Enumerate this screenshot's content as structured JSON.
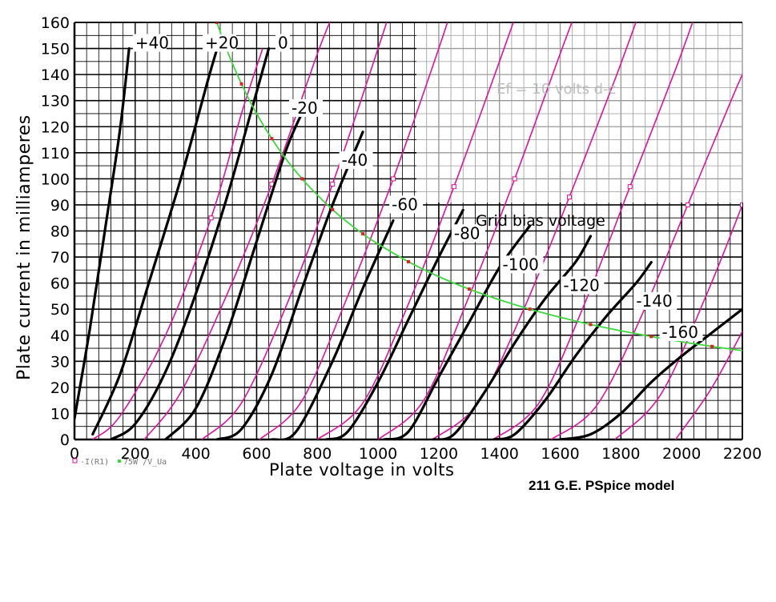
{
  "chart_data": {
    "type": "line",
    "xlabel": "Plate voltage in volts",
    "ylabel": "Plate current in milliamperes",
    "xlim": [
      0,
      2200
    ],
    "ylim": [
      0,
      160
    ],
    "x_ticks": [
      "0",
      "200",
      "400",
      "600",
      "800",
      "1000",
      "1200",
      "1400",
      "1600",
      "1800",
      "2000",
      "2200"
    ],
    "y_ticks": [
      "0",
      "10",
      "20",
      "30",
      "40",
      "50",
      "60",
      "70",
      "80",
      "90",
      "100",
      "110",
      "120",
      "130",
      "140",
      "150",
      "160"
    ],
    "grid": true,
    "annotations": {
      "filament": "Ef = 10 volts d-c",
      "grid_bias": "Grid bias voltage"
    },
    "legend": {
      "items": [
        "-I(R1)",
        "75W /V_Ua"
      ],
      "placement": "bottom-left"
    },
    "caption": "211 G.E. PSpice model",
    "colors": {
      "measured": "#000000",
      "model": "#e0119f",
      "dissipation": "#3cd83c",
      "dissipation_markers": "#e32020"
    },
    "grid_bias_curves": [
      {
        "label": "+40",
        "points": [
          [
            0,
            8
          ],
          [
            50,
            42
          ],
          [
            100,
            80
          ],
          [
            150,
            119
          ],
          [
            180,
            150
          ]
        ]
      },
      {
        "label": "+20",
        "points": [
          [
            60,
            2
          ],
          [
            150,
            25
          ],
          [
            250,
            62
          ],
          [
            350,
            100
          ],
          [
            440,
            138
          ],
          [
            470,
            150
          ]
        ]
      },
      {
        "label": "0",
        "points": [
          [
            120,
            0
          ],
          [
            200,
            6
          ],
          [
            300,
            26
          ],
          [
            400,
            56
          ],
          [
            500,
            92
          ],
          [
            580,
            125
          ],
          [
            640,
            150
          ]
        ]
      },
      {
        "label": "-20",
        "points": [
          [
            300,
            0
          ],
          [
            400,
            12
          ],
          [
            500,
            40
          ],
          [
            600,
            76
          ],
          [
            700,
            112
          ],
          [
            770,
            130
          ]
        ]
      },
      {
        "label": "-40",
        "points": [
          [
            470,
            0
          ],
          [
            550,
            4
          ],
          [
            650,
            25
          ],
          [
            750,
            58
          ],
          [
            850,
            90
          ],
          [
            950,
            118
          ]
        ]
      },
      {
        "label": "-60",
        "points": [
          [
            650,
            0
          ],
          [
            730,
            3
          ],
          [
            850,
            30
          ],
          [
            950,
            58
          ],
          [
            1050,
            84
          ]
        ]
      },
      {
        "label": "-80",
        "points": [
          [
            830,
            0
          ],
          [
            900,
            3
          ],
          [
            1000,
            22
          ],
          [
            1100,
            46
          ],
          [
            1200,
            70
          ],
          [
            1280,
            88
          ]
        ]
      },
      {
        "label": "-100",
        "points": [
          [
            1020,
            0
          ],
          [
            1100,
            3
          ],
          [
            1200,
            24
          ],
          [
            1300,
            45
          ],
          [
            1400,
            66
          ],
          [
            1500,
            82
          ]
        ]
      },
      {
        "label": "-120",
        "points": [
          [
            1180,
            0
          ],
          [
            1250,
            2
          ],
          [
            1350,
            18
          ],
          [
            1450,
            37
          ],
          [
            1550,
            54
          ],
          [
            1650,
            68
          ],
          [
            1700,
            78
          ]
        ]
      },
      {
        "label": "-140",
        "points": [
          [
            1380,
            0
          ],
          [
            1450,
            2
          ],
          [
            1550,
            15
          ],
          [
            1650,
            32
          ],
          [
            1750,
            47
          ],
          [
            1850,
            60
          ],
          [
            1900,
            68
          ]
        ]
      },
      {
        "label": "-160",
        "points": [
          [
            1600,
            0
          ],
          [
            1700,
            2
          ],
          [
            1800,
            10
          ],
          [
            1900,
            22
          ],
          [
            2000,
            32
          ],
          [
            2100,
            41
          ],
          [
            2200,
            50
          ]
        ]
      }
    ],
    "model_curves": [
      {
        "points": [
          [
            60,
            0
          ],
          [
            150,
            9
          ],
          [
            300,
            40
          ],
          [
            450,
            85
          ],
          [
            550,
            125
          ],
          [
            620,
            150
          ]
        ]
      },
      {
        "points": [
          [
            230,
            0
          ],
          [
            350,
            18
          ],
          [
            500,
            55
          ],
          [
            650,
            98
          ],
          [
            800,
            148
          ],
          [
            860,
            165
          ]
        ]
      },
      {
        "points": [
          [
            420,
            0
          ],
          [
            550,
            14
          ],
          [
            700,
            52
          ],
          [
            850,
            98
          ],
          [
            1000,
            150
          ],
          [
            1050,
            168
          ]
        ]
      },
      {
        "points": [
          [
            610,
            0
          ],
          [
            750,
            15
          ],
          [
            900,
            55
          ],
          [
            1050,
            100
          ],
          [
            1200,
            150
          ],
          [
            1250,
            168
          ]
        ]
      },
      {
        "points": [
          [
            800,
            0
          ],
          [
            950,
            14
          ],
          [
            1100,
            52
          ],
          [
            1250,
            97
          ],
          [
            1400,
            145
          ],
          [
            1470,
            168
          ]
        ]
      },
      {
        "points": [
          [
            1000,
            0
          ],
          [
            1150,
            15
          ],
          [
            1300,
            55
          ],
          [
            1450,
            100
          ],
          [
            1600,
            148
          ],
          [
            1670,
            170
          ]
        ]
      },
      {
        "points": [
          [
            1180,
            0
          ],
          [
            1330,
            14
          ],
          [
            1480,
            50
          ],
          [
            1630,
            93
          ],
          [
            1780,
            138
          ],
          [
            1880,
            170
          ]
        ]
      },
      {
        "points": [
          [
            1380,
            0
          ],
          [
            1530,
            14
          ],
          [
            1680,
            52
          ],
          [
            1830,
            97
          ],
          [
            1980,
            142
          ],
          [
            2060,
            168
          ]
        ]
      },
      {
        "points": [
          [
            1570,
            0
          ],
          [
            1720,
            13
          ],
          [
            1870,
            48
          ],
          [
            2020,
            90
          ],
          [
            2170,
            132
          ],
          [
            2220,
            145
          ]
        ]
      },
      {
        "points": [
          [
            1780,
            0
          ],
          [
            1930,
            17
          ],
          [
            2080,
            55
          ],
          [
            2200,
            90
          ],
          [
            2230,
            100
          ]
        ]
      },
      {
        "points": [
          [
            1980,
            0
          ],
          [
            2100,
            20
          ],
          [
            2220,
            46
          ]
        ]
      }
    ],
    "dissipation_curve": {
      "label": "75W",
      "points": [
        [
          469,
          160
        ],
        [
          500,
          150
        ],
        [
          550,
          136.4
        ],
        [
          600,
          125
        ],
        [
          650,
          115.4
        ],
        [
          700,
          107.1
        ],
        [
          750,
          100
        ],
        [
          800,
          93.8
        ],
        [
          850,
          88.2
        ],
        [
          900,
          83.3
        ],
        [
          950,
          78.9
        ],
        [
          1000,
          75
        ],
        [
          1100,
          68.2
        ],
        [
          1200,
          62.5
        ],
        [
          1300,
          57.7
        ],
        [
          1400,
          53.6
        ],
        [
          1500,
          50
        ],
        [
          1600,
          46.9
        ],
        [
          1700,
          44.1
        ],
        [
          1800,
          41.7
        ],
        [
          1900,
          39.5
        ],
        [
          2000,
          37.5
        ],
        [
          2100,
          35.7
        ],
        [
          2200,
          34.1
        ]
      ]
    },
    "curve_labels": [
      {
        "text": "+40",
        "x": 200,
        "y": 150
      },
      {
        "text": "+20",
        "x": 430,
        "y": 150
      },
      {
        "text": "0",
        "x": 670,
        "y": 150
      },
      {
        "text": "-20",
        "x": 715,
        "y": 125
      },
      {
        "text": "-40",
        "x": 880,
        "y": 105
      },
      {
        "text": "-60",
        "x": 1045,
        "y": 88
      },
      {
        "text": "-80",
        "x": 1250,
        "y": 77
      },
      {
        "text": "-100",
        "x": 1410,
        "y": 65
      },
      {
        "text": "-120",
        "x": 1610,
        "y": 57
      },
      {
        "text": "-140",
        "x": 1850,
        "y": 51
      },
      {
        "text": "-160",
        "x": 1935,
        "y": 39
      }
    ]
  }
}
